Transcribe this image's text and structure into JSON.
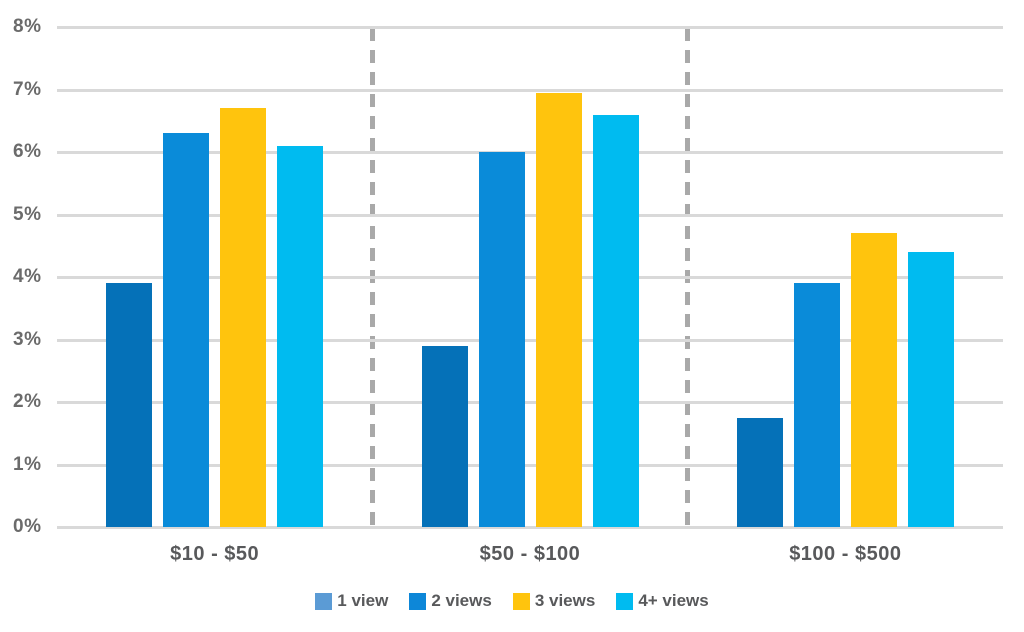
{
  "chart_data": {
    "type": "bar",
    "title": "",
    "categories": [
      "$10 - $50",
      "$50 - $100",
      "$100 - $500"
    ],
    "series": [
      {
        "name": "1 view",
        "color": "#0571B8",
        "legend_swatch": "#5B9BD5",
        "values": [
          3.9,
          2.9,
          1.75
        ]
      },
      {
        "name": "2 views",
        "color": "#0A8BD9",
        "legend_swatch": "#0D87D8",
        "values": [
          6.3,
          6.0,
          3.9
        ]
      },
      {
        "name": "3 views",
        "color": "#FFC40D",
        "legend_swatch": "#FFC40D",
        "values": [
          6.7,
          6.95,
          4.7
        ]
      },
      {
        "name": "4+ views",
        "color": "#00BBF0",
        "legend_swatch": "#00BBF0",
        "values": [
          6.1,
          6.6,
          4.4
        ]
      }
    ],
    "ylim": [
      0,
      8
    ],
    "ytick_step": 1,
    "ytick_labels": [
      "0%",
      "1%",
      "2%",
      "3%",
      "4%",
      "5%",
      "6%",
      "7%",
      "8%"
    ],
    "grid": true,
    "group_separator_style": "dashed",
    "legend_position": "bottom",
    "colors": {
      "gridline": "#D9D9D9",
      "separator": "#A9A9A9",
      "axis_label": "#6B6B6B",
      "category_label": "#58595B",
      "legend_text": "#58595B",
      "background": "#FFFFFF"
    }
  }
}
